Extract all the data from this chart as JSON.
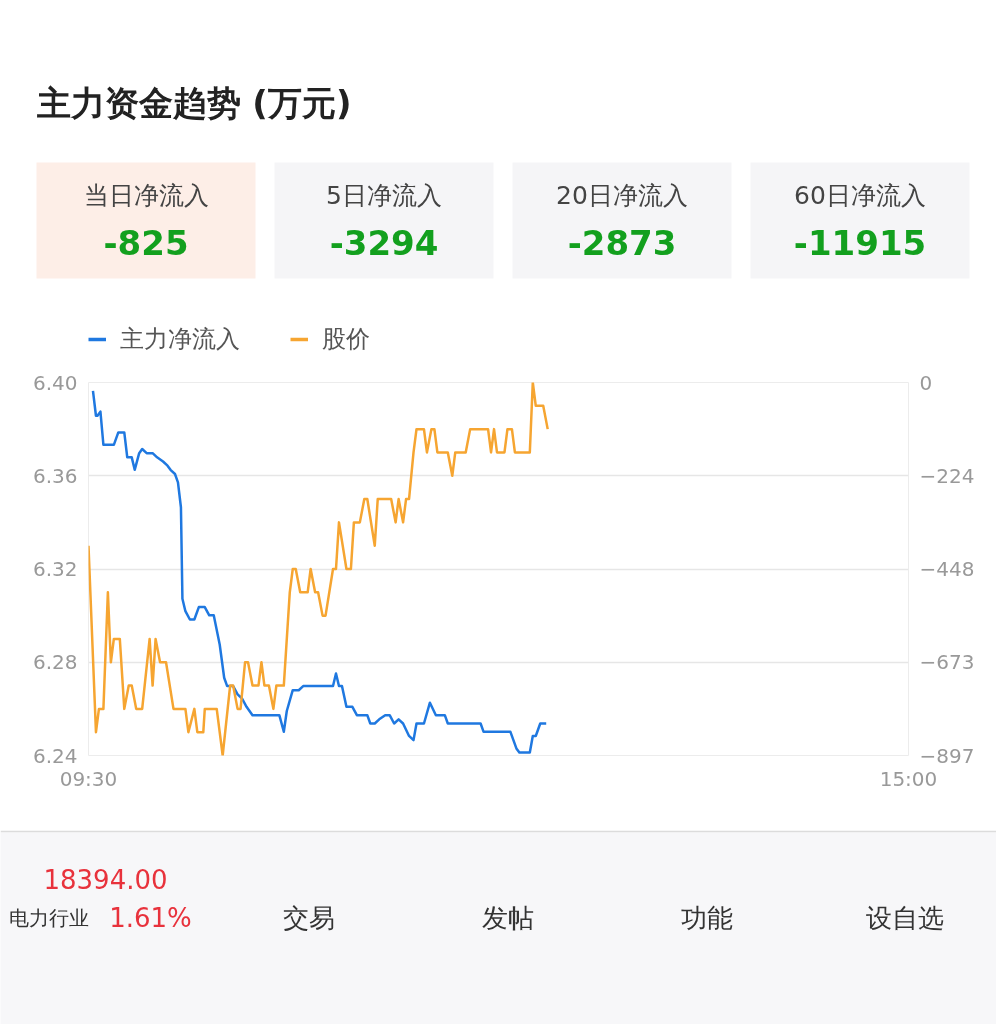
{
  "chart_data": [
    {
      "type": "other",
      "title": "主力资金趋势 (万元)",
      "categories": [
        "当日净流入",
        "5日净流入",
        "20日净流入",
        "60日净流入"
      ],
      "values": [
        -825,
        -3294,
        -2873,
        -11915
      ],
      "data_labels": true
    },
    {
      "type": "line",
      "xlim": [
        9.5,
        15
      ],
      "xticks": [
        {
          "value": 9.5,
          "label": "09:30"
        },
        {
          "value": 15,
          "label": "15:00"
        }
      ],
      "ylim": [
        6.24,
        6.4
      ],
      "yticks": [
        {
          "value": 6.4,
          "label": "6.40"
        },
        6.36,
        6.32,
        6.28,
        6.24
      ],
      "y2lim": [
        -897,
        0
      ],
      "y2ticks": [
        0,
        -224,
        -448,
        -673,
        -897
      ],
      "grid": "y",
      "legend": "top left",
      "line_style": "solid",
      "series": [
        {
          "name": "主力净流入",
          "color": "#1f78e0",
          "axis": "y2",
          "x": [
            9.53,
            9.55,
            9.56,
            9.58,
            9.6,
            9.67,
            9.7,
            9.74,
            9.76,
            9.79,
            9.81,
            9.84,
            9.86,
            9.89,
            9.93,
            9.96,
            10.0,
            10.03,
            10.05,
            10.08,
            10.1,
            10.12,
            10.13,
            10.15,
            10.18,
            10.21,
            10.24,
            10.28,
            10.31,
            10.34,
            10.38,
            10.41,
            10.43,
            10.47,
            10.5,
            10.53,
            10.56,
            10.6,
            10.78,
            10.81,
            10.83,
            10.87,
            10.91,
            10.94,
            11.14,
            11.16,
            11.18,
            11.2,
            11.23,
            11.27,
            11.3,
            11.37,
            11.39,
            11.42,
            11.45,
            11.49,
            11.52,
            11.55,
            11.58,
            11.61,
            11.65,
            11.68,
            11.7,
            11.75,
            11.79,
            11.83,
            11.89,
            11.91,
            12.13,
            12.15,
            12.33,
            12.37,
            12.39,
            12.46,
            12.48,
            12.5,
            12.53,
            12.57
          ],
          "values": [
            -20,
            -80,
            -80,
            -70,
            -150,
            -150,
            -120,
            -120,
            -180,
            -180,
            -210,
            -170,
            -160,
            -170,
            -170,
            -180,
            -190,
            -200,
            -210,
            -220,
            -240,
            -300,
            -520,
            -550,
            -570,
            -570,
            -540,
            -540,
            -560,
            -560,
            -630,
            -710,
            -730,
            -730,
            -750,
            -760,
            -780,
            -800,
            -800,
            -840,
            -790,
            -740,
            -740,
            -730,
            -730,
            -700,
            -730,
            -730,
            -780,
            -780,
            -800,
            -800,
            -820,
            -820,
            -810,
            -800,
            -800,
            -820,
            -810,
            -820,
            -850,
            -860,
            -820,
            -820,
            -770,
            -800,
            -800,
            -820,
            -820,
            -840,
            -840,
            -880,
            -890,
            -890,
            -850,
            -850,
            -820,
            -820
          ]
        },
        {
          "name": "股价",
          "color": "#f6a531",
          "x": [
            9.5,
            9.55,
            9.57,
            9.6,
            9.63,
            9.65,
            9.67,
            9.71,
            9.74,
            9.77,
            9.79,
            9.82,
            9.86,
            9.91,
            9.93,
            9.95,
            9.98,
            10.02,
            10.07,
            10.15,
            10.17,
            10.21,
            10.23,
            10.27,
            10.28,
            10.36,
            10.4,
            10.45,
            10.47,
            10.5,
            10.52,
            10.55,
            10.57,
            10.6,
            10.64,
            10.66,
            10.68,
            10.71,
            10.74,
            10.76,
            10.81,
            10.85,
            10.87,
            10.89,
            10.92,
            10.97,
            10.99,
            11.02,
            11.04,
            11.07,
            11.09,
            11.14,
            11.16,
            11.18,
            11.23,
            11.26,
            11.28,
            11.32,
            11.35,
            11.37,
            11.42,
            11.44,
            11.53,
            11.56,
            11.58,
            11.61,
            11.63,
            11.65,
            11.68,
            11.7,
            11.75,
            11.77,
            11.8,
            11.82,
            11.84,
            11.91,
            11.94,
            11.96,
            12.03,
            12.06,
            12.18,
            12.2,
            12.22,
            12.24,
            12.29,
            12.31,
            12.34,
            12.36,
            12.46,
            12.48,
            12.5,
            12.55,
            12.58
          ],
          "values": [
            6.33,
            6.25,
            6.26,
            6.26,
            6.31,
            6.28,
            6.29,
            6.29,
            6.26,
            6.27,
            6.27,
            6.26,
            6.26,
            6.29,
            6.27,
            6.29,
            6.28,
            6.28,
            6.26,
            6.26,
            6.25,
            6.26,
            6.25,
            6.25,
            6.26,
            6.26,
            6.24,
            6.27,
            6.27,
            6.26,
            6.26,
            6.28,
            6.28,
            6.27,
            6.27,
            6.28,
            6.27,
            6.27,
            6.26,
            6.27,
            6.27,
            6.31,
            6.32,
            6.32,
            6.31,
            6.31,
            6.32,
            6.31,
            6.31,
            6.3,
            6.3,
            6.32,
            6.32,
            6.34,
            6.32,
            6.32,
            6.34,
            6.34,
            6.35,
            6.35,
            6.33,
            6.35,
            6.35,
            6.34,
            6.35,
            6.34,
            6.35,
            6.35,
            6.37,
            6.38,
            6.38,
            6.37,
            6.38,
            6.38,
            6.37,
            6.37,
            6.36,
            6.37,
            6.37,
            6.38,
            6.38,
            6.37,
            6.38,
            6.37,
            6.37,
            6.38,
            6.38,
            6.37,
            6.37,
            6.4,
            6.39,
            6.39,
            6.38
          ]
        }
      ]
    },
    {
      "type": "other",
      "annotations": [
        "18394.00",
        "电力行业",
        "1.61%",
        "交易",
        "发帖",
        "功能",
        "设自选"
      ]
    }
  ]
}
